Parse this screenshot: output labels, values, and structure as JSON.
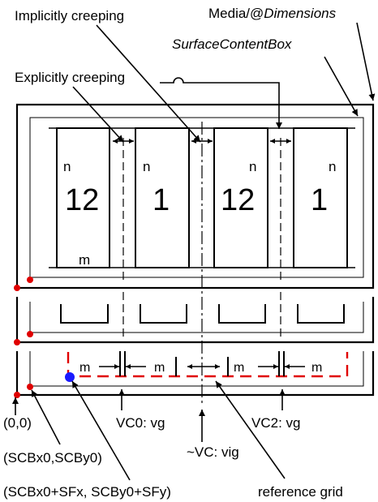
{
  "labels": {
    "implicitly_creeping": "Implicitly  creeping",
    "explicitly_creeping": "Explicitly  creeping",
    "media_prefix": "Media/@",
    "media_dimensions": "Dimensions",
    "surface_content_box": "SurfaceContentBox",
    "origin": "(0,0)",
    "scb_origin": "(SCBx0,SCBy0)",
    "scb_offset": "(SCBx0+SFx, SCBy0+SFy)",
    "vc0": "VC0: vg",
    "vc2": "VC2: vg",
    "vc_tilde": "~VC: vig",
    "reference_grid": "reference grid"
  },
  "pages": [
    {
      "number": "12",
      "top_label": "n",
      "bottom_label": "m"
    },
    {
      "number": "1",
      "top_label": "n"
    },
    {
      "number": "12",
      "top_label": "n"
    },
    {
      "number": "1",
      "top_label": "n"
    }
  ],
  "margin_labels": [
    "m",
    "m",
    "m",
    "m"
  ],
  "colors": {
    "line": "#000000",
    "reference_grid": "#e00000",
    "media_origin_dot": "#e00000",
    "scb_dot": "#e00000",
    "sf_dot": "#1a1aff"
  }
}
